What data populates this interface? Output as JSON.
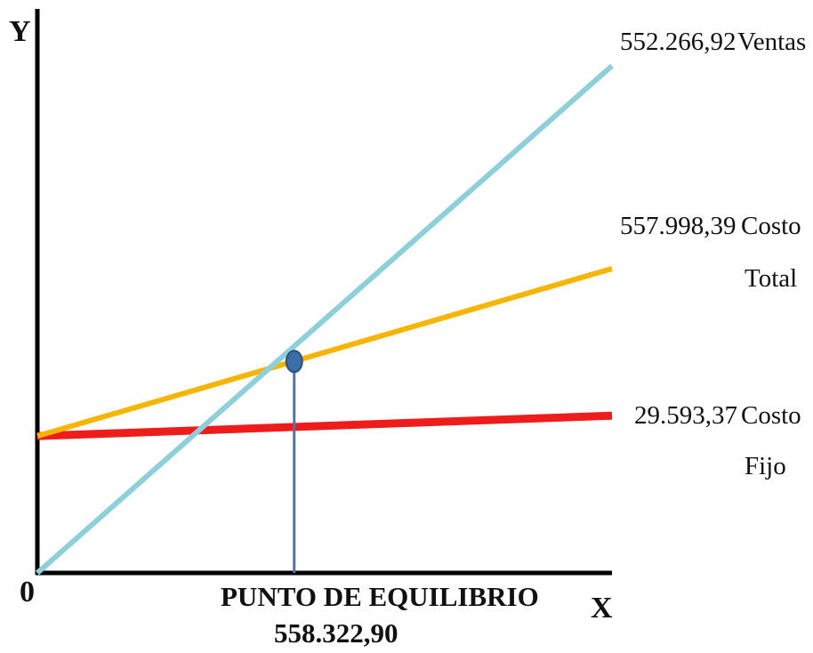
{
  "chart_data": {
    "type": "line",
    "xlabel": "X",
    "ylabel": "Y",
    "origin_label": "0",
    "series": [
      {
        "key": "ventas",
        "label_value": "552.266,92",
        "label_name": "Ventas",
        "color": "#8ecfdc",
        "start": [
          0,
          0
        ],
        "end": [
          1,
          1
        ]
      },
      {
        "key": "costo_total",
        "label_value": "557.998,39",
        "label_name_1": "Costo",
        "label_name_2": "Total",
        "color": "#f7b500",
        "start": [
          0,
          0.27
        ],
        "end": [
          1,
          0.6
        ]
      },
      {
        "key": "costo_fijo",
        "label_value": "29.593,37",
        "label_name_1": "Costo",
        "label_name_2": "Fijo",
        "color": "#ef1c1c",
        "start": [
          0,
          0.27
        ],
        "end": [
          1,
          0.31
        ]
      }
    ],
    "break_even": {
      "label": "PUNTO DE EQUILIBRIO",
      "value": "558.322,90",
      "x": 0.447,
      "y": 0.417,
      "marker_color": "#3d6da6",
      "line_color": "#4a76b0"
    }
  }
}
